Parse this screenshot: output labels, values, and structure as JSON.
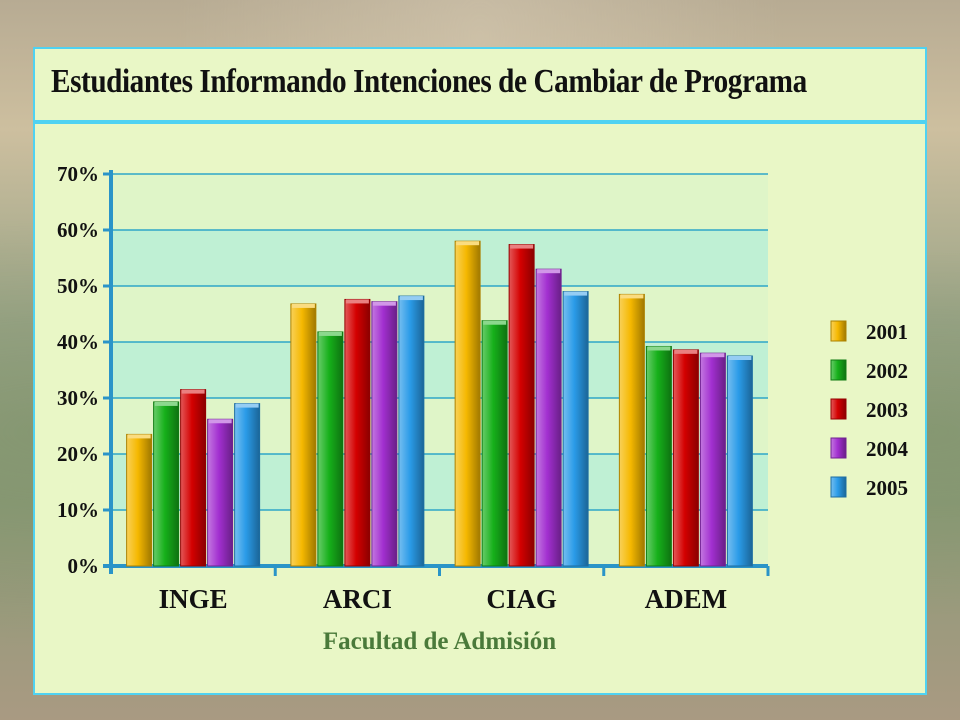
{
  "slide": {
    "title": "Estudiantes Informando Intenciones de Cambiar de Programa"
  },
  "chart_data": {
    "type": "bar",
    "title": "Estudiantes Informando Intenciones de Cambiar de Programa",
    "xlabel": "Facultad de Admisión",
    "ylabel": "",
    "ylim": [
      0,
      70
    ],
    "y_ticks": [
      "0%",
      "10%",
      "20%",
      "30%",
      "40%",
      "50%",
      "60%",
      "70%"
    ],
    "categories": [
      "INGE",
      "ARCI",
      "CIAG",
      "ADEM"
    ],
    "legend_position": "right",
    "grid": true,
    "series": [
      {
        "name": "2001",
        "color": "#f5b800",
        "values": [
          23.5,
          46.8,
          58.0,
          48.5
        ]
      },
      {
        "name": "2002",
        "color": "#16b01a",
        "values": [
          29.3,
          41.8,
          43.8,
          39.2
        ]
      },
      {
        "name": "2003",
        "color": "#d40000",
        "values": [
          31.5,
          47.6,
          57.4,
          38.6
        ]
      },
      {
        "name": "2004",
        "color": "#a22fd0",
        "values": [
          26.2,
          47.2,
          53.0,
          38.0
        ]
      },
      {
        "name": "2005",
        "color": "#2a9be8",
        "values": [
          29.0,
          48.2,
          49.0,
          37.5
        ]
      }
    ]
  }
}
